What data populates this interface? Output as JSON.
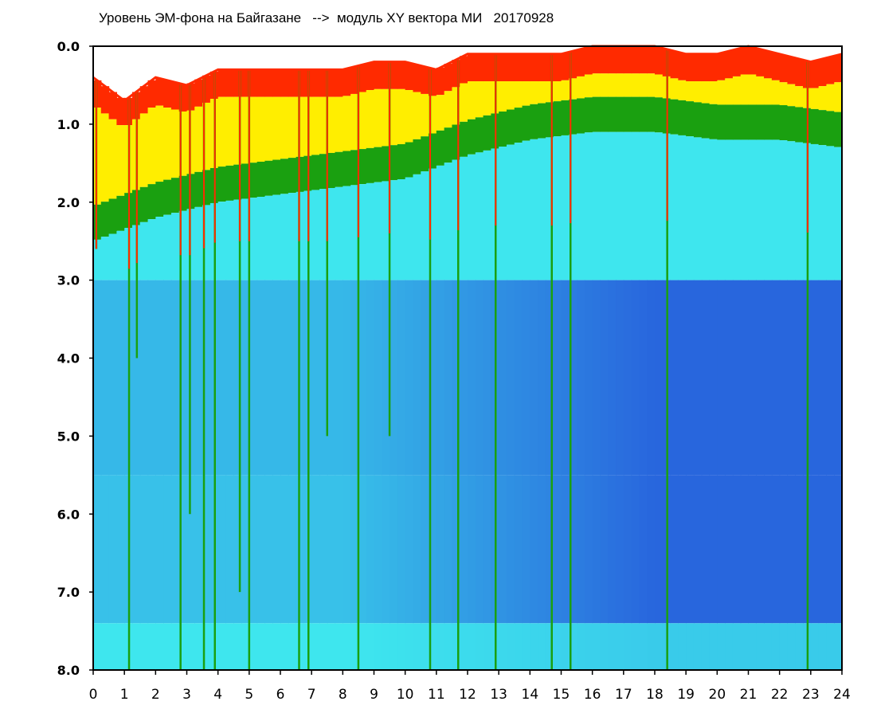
{
  "chart_data": {
    "type": "heatmap",
    "title": "Уровень ЭМ-фона на Байгазане   -->  модуль XY вектора МИ   20170928",
    "xlabel": "",
    "ylabel": "",
    "xlim": [
      0,
      24
    ],
    "ylim": [
      0.0,
      8.0
    ],
    "y_inverted": true,
    "x_ticks": [
      "0",
      "1",
      "2",
      "3",
      "4",
      "5",
      "6",
      "7",
      "8",
      "9",
      "10",
      "11",
      "12",
      "13",
      "14",
      "15",
      "16",
      "17",
      "18",
      "19",
      "20",
      "21",
      "22",
      "23",
      "24"
    ],
    "y_ticks": [
      "0.0",
      "1.0",
      "2.0",
      "3.0",
      "4.0",
      "5.0",
      "6.0",
      "7.0",
      "8.0"
    ],
    "grid": false,
    "colors": {
      "strong": "#ff2a00",
      "high": "#ffee00",
      "mid": "#1aa010",
      "low": "#3ee6ee",
      "lowest": "#1f2fd6",
      "background": "#ffffff",
      "axes": "#000000"
    },
    "upper_edge_by_hour": [
      {
        "hour": 0,
        "level": 0.4
      },
      {
        "hour": 1,
        "level": 0.7
      },
      {
        "hour": 2,
        "level": 0.4
      },
      {
        "hour": 3,
        "level": 0.5
      },
      {
        "hour": 4,
        "level": 0.3
      },
      {
        "hour": 5,
        "level": 0.3
      },
      {
        "hour": 6,
        "level": 0.3
      },
      {
        "hour": 7,
        "level": 0.3
      },
      {
        "hour": 8,
        "level": 0.3
      },
      {
        "hour": 9,
        "level": 0.2
      },
      {
        "hour": 10,
        "level": 0.2
      },
      {
        "hour": 11,
        "level": 0.3
      },
      {
        "hour": 12,
        "level": 0.1
      },
      {
        "hour": 13,
        "level": 0.1
      },
      {
        "hour": 14,
        "level": 0.1
      },
      {
        "hour": 15,
        "level": 0.1
      },
      {
        "hour": 16,
        "level": 0.0
      },
      {
        "hour": 17,
        "level": 0.0
      },
      {
        "hour": 18,
        "level": 0.0
      },
      {
        "hour": 19,
        "level": 0.1
      },
      {
        "hour": 20,
        "level": 0.1
      },
      {
        "hour": 21,
        "level": 0.0
      },
      {
        "hour": 22,
        "level": 0.1
      },
      {
        "hour": 23,
        "level": 0.2
      },
      {
        "hour": 24,
        "level": 0.1
      }
    ],
    "yellow_to_cyan_transition_by_hour": [
      {
        "hour": 0,
        "level": 2.5
      },
      {
        "hour": 2,
        "level": 2.2
      },
      {
        "hour": 4,
        "level": 2.0
      },
      {
        "hour": 6,
        "level": 1.9
      },
      {
        "hour": 8,
        "level": 1.8
      },
      {
        "hour": 10,
        "level": 1.7
      },
      {
        "hour": 12,
        "level": 1.4
      },
      {
        "hour": 14,
        "level": 1.2
      },
      {
        "hour": 16,
        "level": 1.1
      },
      {
        "hour": 18,
        "level": 1.1
      },
      {
        "hour": 20,
        "level": 1.2
      },
      {
        "hour": 22,
        "level": 1.2
      },
      {
        "hour": 24,
        "level": 1.3
      }
    ],
    "spikes": [
      {
        "hour": 0.1,
        "depth": 2.6
      },
      {
        "hour": 1.15,
        "depth": 8.0
      },
      {
        "hour": 1.4,
        "depth": 4.0
      },
      {
        "hour": 2.8,
        "depth": 8.0
      },
      {
        "hour": 3.1,
        "depth": 6.0
      },
      {
        "hour": 3.55,
        "depth": 8.0
      },
      {
        "hour": 3.9,
        "depth": 8.0
      },
      {
        "hour": 4.7,
        "depth": 7.0
      },
      {
        "hour": 5.0,
        "depth": 8.0
      },
      {
        "hour": 6.6,
        "depth": 8.0
      },
      {
        "hour": 6.9,
        "depth": 8.0
      },
      {
        "hour": 7.5,
        "depth": 5.0
      },
      {
        "hour": 8.5,
        "depth": 8.0
      },
      {
        "hour": 9.5,
        "depth": 5.0
      },
      {
        "hour": 10.8,
        "depth": 8.0
      },
      {
        "hour": 11.7,
        "depth": 8.0
      },
      {
        "hour": 12.9,
        "depth": 8.0
      },
      {
        "hour": 14.7,
        "depth": 8.0
      },
      {
        "hour": 15.3,
        "depth": 8.0
      },
      {
        "hour": 18.4,
        "depth": 8.0
      },
      {
        "hour": 22.9,
        "depth": 8.0
      }
    ]
  }
}
